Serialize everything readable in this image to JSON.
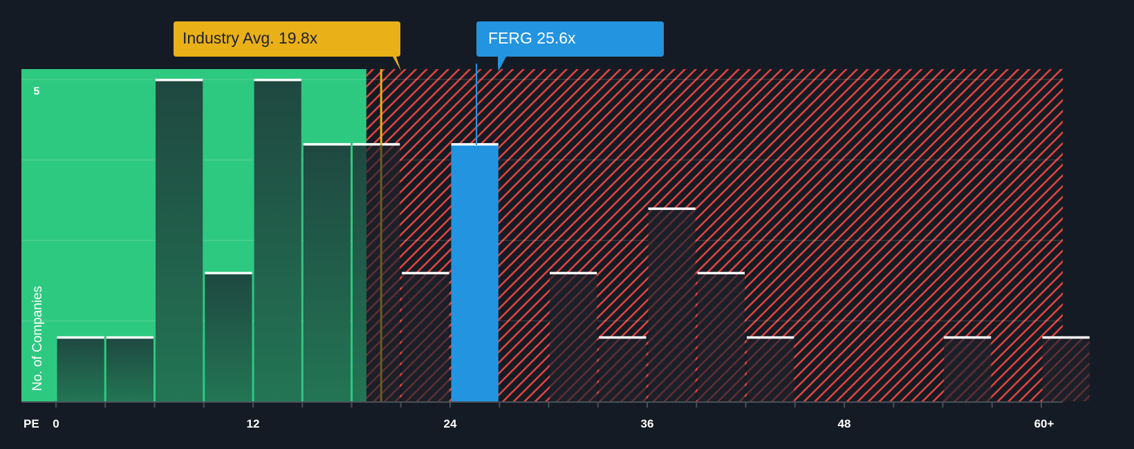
{
  "chart_data": {
    "type": "bar",
    "title": "",
    "xlabel": "PE",
    "ylabel": "No. of Companies",
    "x_tick_labels": [
      "0",
      "12",
      "24",
      "36",
      "48",
      "60+"
    ],
    "x_tick_values": [
      0,
      12,
      24,
      36,
      48,
      60
    ],
    "bin_width": 3,
    "y_tick_labels": [
      "5"
    ],
    "ylim": [
      0,
      5
    ],
    "grid": true,
    "categories": [
      "0-3",
      "3-6",
      "6-9",
      "9-12",
      "12-15",
      "15-18",
      "18-21",
      "21-24",
      "24-27",
      "27-30",
      "30-33",
      "33-36",
      "36-39",
      "39-42",
      "42-45",
      "45-48",
      "48-51",
      "51-54",
      "54-57",
      "57-60",
      "60+"
    ],
    "values": [
      1,
      1,
      5,
      2,
      5,
      4,
      4,
      2,
      4,
      0,
      2,
      1,
      3,
      2,
      1,
      0,
      0,
      0,
      1,
      0,
      1
    ],
    "highlight_bin_index": 8,
    "annotations": [
      {
        "label": "Industry Avg. 19.8x",
        "value": 19.8,
        "color": "#e9b018"
      },
      {
        "label": "FERG 25.6x",
        "value": 25.6,
        "color": "#2394e0"
      }
    ],
    "regions": [
      {
        "name": "undervalued",
        "from": -2.1,
        "to": 18.9,
        "color": "#2ec981"
      },
      {
        "name": "overvalued",
        "from": 18.9,
        "to": 61.3,
        "color": "#e0453e",
        "pattern": "diagonal-hatch"
      }
    ]
  },
  "labels": {
    "industry_avg": "Industry Avg. 19.8x",
    "company": "FERG 25.6x",
    "y_axis_title": "No. of Companies",
    "y_max_tick": "5",
    "x_axis_title": "PE"
  },
  "colors": {
    "background": "#151b24",
    "green_region": "#2ec981",
    "green_bar": "#204a40",
    "hatch": "#e0453e",
    "company_bar": "#2394e0",
    "industry_line": "#e9b018",
    "bar_cap": "#ffffff",
    "axis": "#4a4f58"
  }
}
